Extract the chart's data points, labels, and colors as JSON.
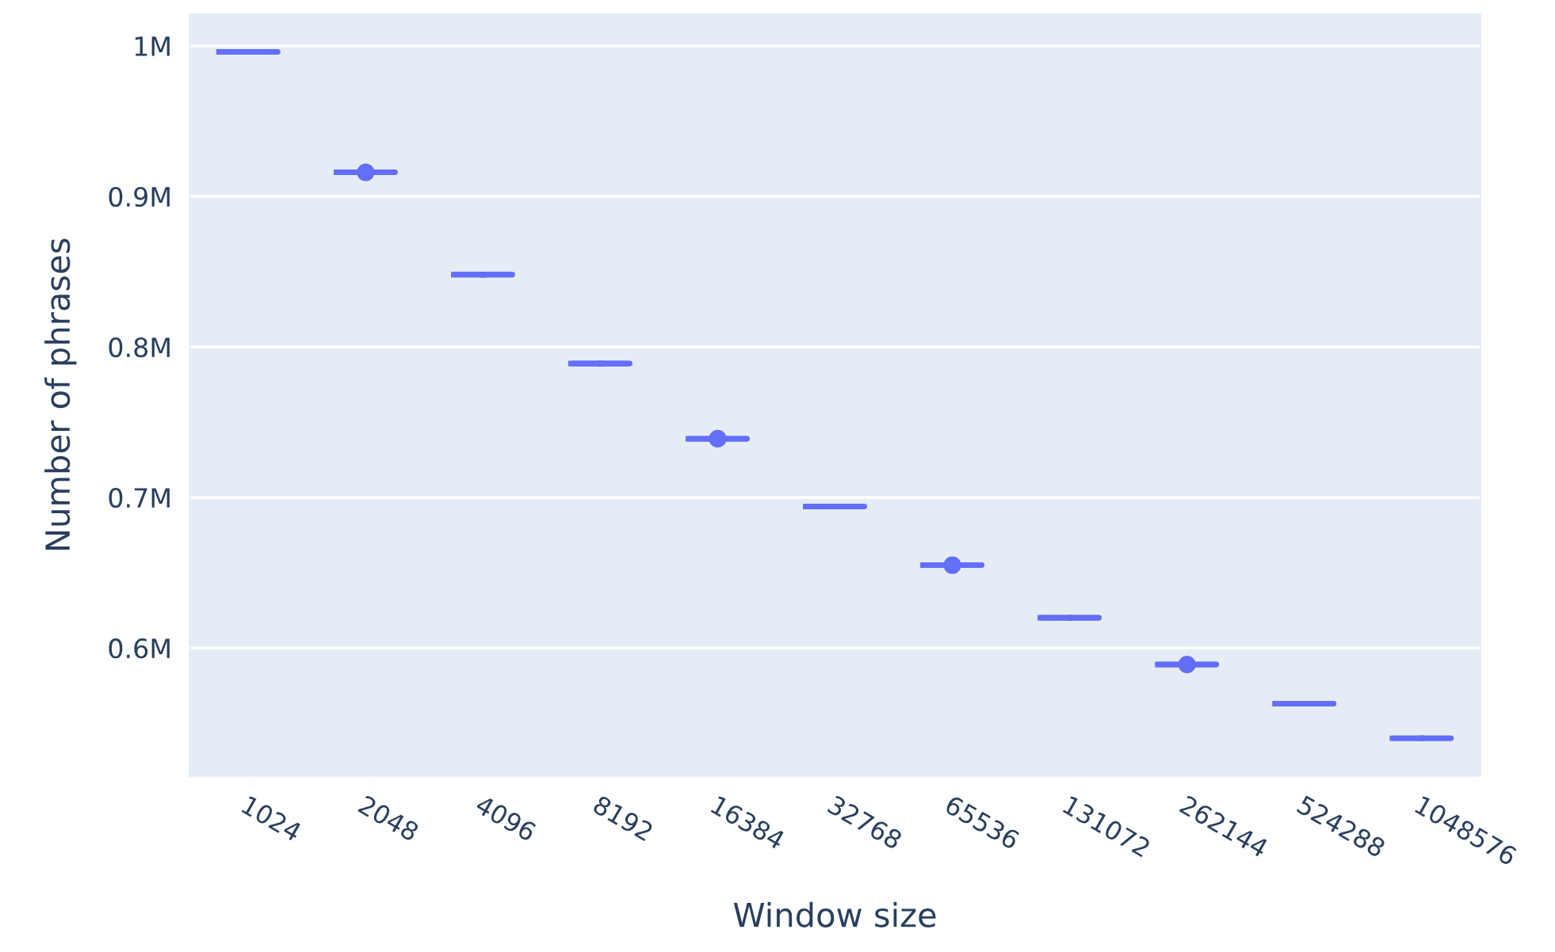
{
  "chart_data": {
    "type": "box",
    "xlabel": "Window size",
    "ylabel": "Number of phrases",
    "categories": [
      "1024",
      "2048",
      "4096",
      "8192",
      "16384",
      "32768",
      "65536",
      "131072",
      "262144",
      "524288",
      "1048576"
    ],
    "color": "#636efa",
    "boxes": [
      {
        "low": 996000,
        "q1": 996000,
        "median": 996000,
        "q3": 996000,
        "high": 996000
      },
      {
        "low": 916000,
        "q1": 916000,
        "median": 916000,
        "q3": 916000,
        "high": 916000,
        "outliers": [
          916000
        ]
      },
      {
        "low": 848000,
        "q1": 848000,
        "median": 848000,
        "q3": 848000,
        "high": 848000
      },
      {
        "low": 789000,
        "q1": 789000,
        "median": 789000,
        "q3": 789000,
        "high": 789000
      },
      {
        "low": 739000,
        "q1": 739000,
        "median": 739000,
        "q3": 739000,
        "high": 739000,
        "outliers": [
          739000
        ]
      },
      {
        "low": 694000,
        "q1": 694000,
        "median": 694000,
        "q3": 694000,
        "high": 694000
      },
      {
        "low": 655000,
        "q1": 655000,
        "median": 655000,
        "q3": 655000,
        "high": 655000,
        "outliers": [
          655000
        ]
      },
      {
        "low": 620000,
        "q1": 620000,
        "median": 620000,
        "q3": 620000,
        "high": 620000
      },
      {
        "low": 589000,
        "q1": 589000,
        "median": 589000,
        "q3": 589000,
        "high": 589000,
        "outliers": [
          589000
        ]
      },
      {
        "low": 563000,
        "q1": 563000,
        "median": 563000,
        "q3": 563000,
        "high": 563000
      },
      {
        "low": 540000,
        "q1": 540000,
        "median": 540000,
        "q3": 540000,
        "high": 540000
      }
    ],
    "ylim": [
      515000,
      1021000
    ],
    "yticks": [
      {
        "value": 600000,
        "label": "0.6M"
      },
      {
        "value": 700000,
        "label": "0.7M"
      },
      {
        "value": 800000,
        "label": "0.8M"
      },
      {
        "value": 900000,
        "label": "0.9M"
      },
      {
        "value": 1000000,
        "label": "1M"
      }
    ],
    "grid": "y"
  }
}
